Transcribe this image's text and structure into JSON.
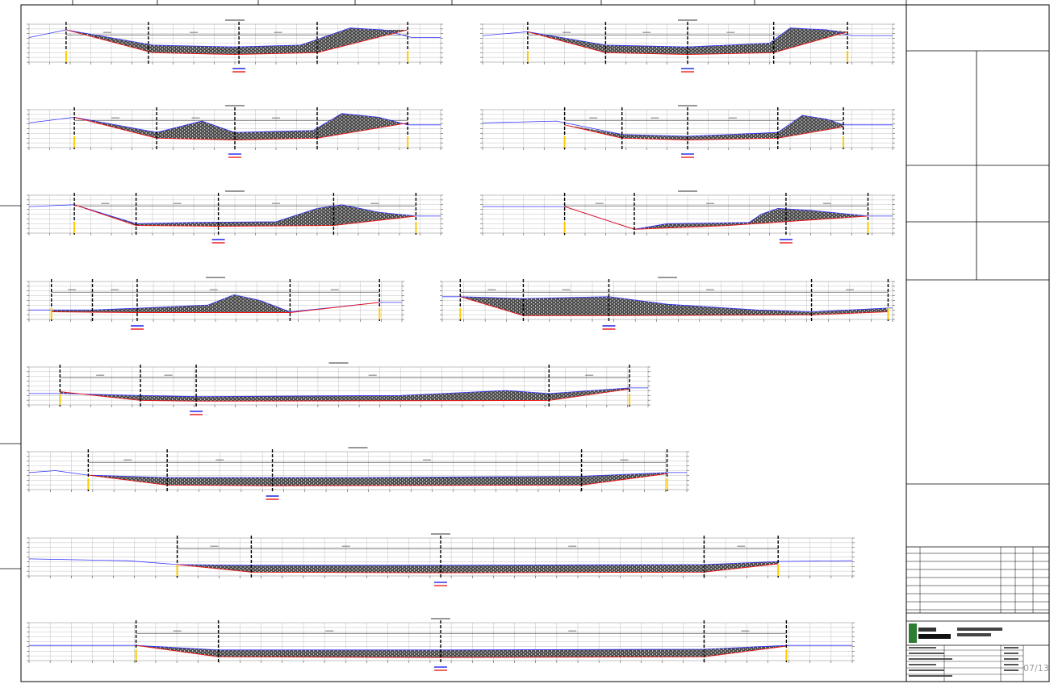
{
  "drawing": {
    "colors": {
      "frame": "#000000",
      "grid": "#9a9a9a",
      "terrain": "#3333ff",
      "design": "#ee1111",
      "fill": "#2a2a2a",
      "label_blue": "#2222ee",
      "label_red": "#ee2222",
      "marker": "#ffcc00"
    },
    "sheet_number": "07/13"
  },
  "sections": [
    {
      "id": "s1"
    },
    {
      "id": "s2"
    },
    {
      "id": "s3"
    },
    {
      "id": "s4"
    },
    {
      "id": "s5"
    },
    {
      "id": "s6"
    },
    {
      "id": "s7"
    },
    {
      "id": "s8"
    },
    {
      "id": "s9"
    },
    {
      "id": "s10"
    },
    {
      "id": "s11"
    },
    {
      "id": "s12"
    }
  ]
}
